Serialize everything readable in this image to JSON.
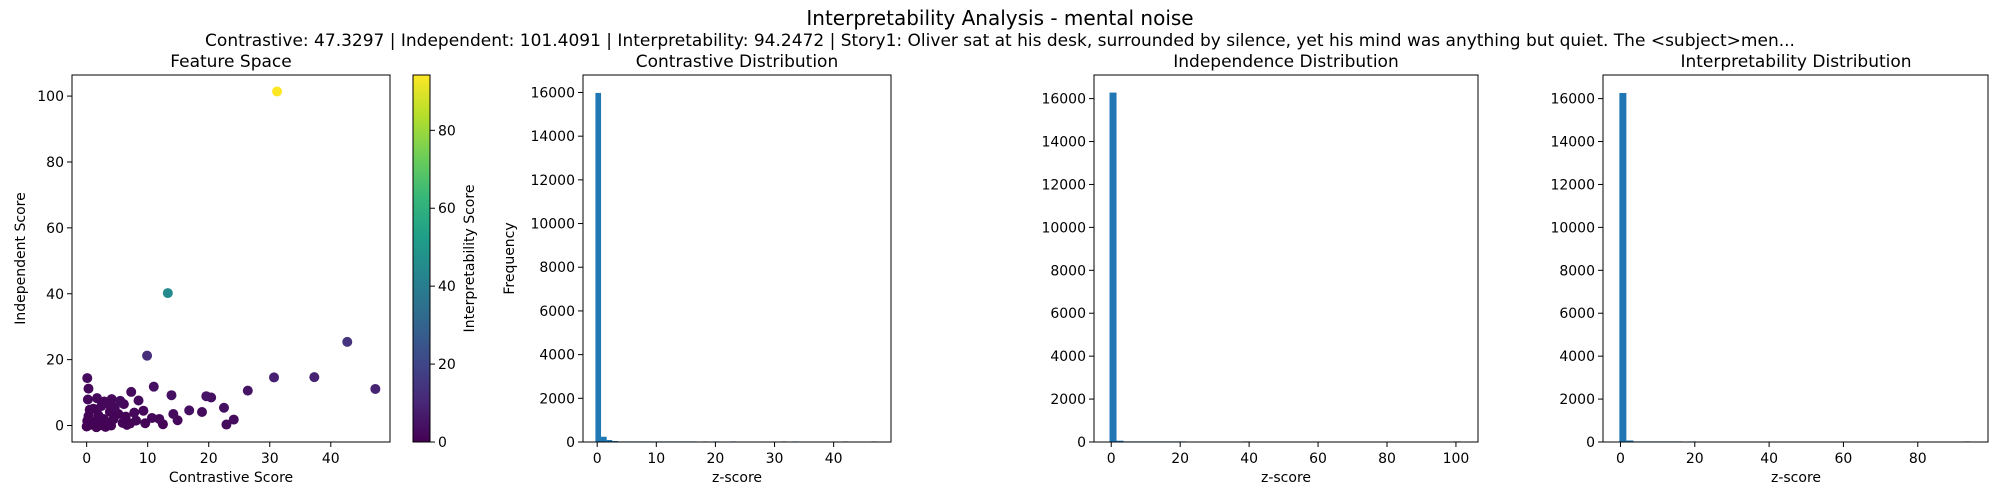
{
  "figure": {
    "title": "Interpretability Analysis - mental noise",
    "subtitle": "Contrastive: 47.3297 | Independent: 101.4091 | Interpretability: 94.2472 | Story1: Oliver sat at his desk, surrounded by silence, yet his mind was anything but quiet. The <subject>men..."
  },
  "colors": {
    "bar": "#1f77b4",
    "viridis": [
      "#440154",
      "#482878",
      "#3e4989",
      "#31688e",
      "#26828e",
      "#1f9e89",
      "#35b779",
      "#6ece58",
      "#b5de2b",
      "#fde725"
    ]
  },
  "chart_data": [
    {
      "type": "scatter",
      "title": "Feature Space",
      "xlabel": "Contrastive Score",
      "ylabel": "Independent Score",
      "xlim": [
        -2.4,
        49.7
      ],
      "ylim": [
        -5.0,
        106.4
      ],
      "xticks": [
        0,
        10,
        20,
        30,
        40
      ],
      "yticks": [
        0,
        20,
        40,
        60,
        80,
        100
      ],
      "colorbar": {
        "label": "Interpretability Score",
        "range": [
          0,
          94.2
        ],
        "ticks": [
          0,
          20,
          40,
          60,
          80
        ]
      },
      "points": [
        {
          "x": 31.2,
          "y": 101.4,
          "c": 94.2
        },
        {
          "x": 13.3,
          "y": 40.2,
          "c": 45
        },
        {
          "x": 42.7,
          "y": 25.4,
          "c": 14
        },
        {
          "x": 9.9,
          "y": 21.2,
          "c": 12
        },
        {
          "x": 37.3,
          "y": 14.7,
          "c": 9
        },
        {
          "x": 30.7,
          "y": 14.6,
          "c": 8
        },
        {
          "x": 47.3,
          "y": 11.1,
          "c": 9
        },
        {
          "x": 0.1,
          "y": 14.4,
          "c": 3
        },
        {
          "x": 11.0,
          "y": 11.8,
          "c": 4
        },
        {
          "x": 26.4,
          "y": 10.6,
          "c": 5
        },
        {
          "x": 0.3,
          "y": 11.2,
          "c": 2
        },
        {
          "x": 7.3,
          "y": 10.2,
          "c": 3
        },
        {
          "x": 13.9,
          "y": 9.2,
          "c": 4
        },
        {
          "x": 19.6,
          "y": 8.9,
          "c": 5
        },
        {
          "x": 20.4,
          "y": 8.5,
          "c": 4
        },
        {
          "x": 0.2,
          "y": 7.9,
          "c": 2
        },
        {
          "x": 1.7,
          "y": 8.3,
          "c": 2
        },
        {
          "x": 4.1,
          "y": 8.0,
          "c": 2
        },
        {
          "x": 5.5,
          "y": 7.5,
          "c": 3
        },
        {
          "x": 2.9,
          "y": 7.3,
          "c": 2
        },
        {
          "x": 8.5,
          "y": 7.6,
          "c": 3
        },
        {
          "x": 3.3,
          "y": 6.8,
          "c": 2
        },
        {
          "x": 6.1,
          "y": 6.5,
          "c": 2
        },
        {
          "x": 2.4,
          "y": 5.9,
          "c": 2
        },
        {
          "x": 4.6,
          "y": 5.4,
          "c": 2
        },
        {
          "x": 1.1,
          "y": 5.1,
          "c": 1
        },
        {
          "x": 0.5,
          "y": 4.8,
          "c": 1
        },
        {
          "x": 16.8,
          "y": 4.6,
          "c": 4
        },
        {
          "x": 18.9,
          "y": 4.1,
          "c": 3
        },
        {
          "x": 22.5,
          "y": 5.4,
          "c": 4
        },
        {
          "x": 3.8,
          "y": 4.2,
          "c": 1
        },
        {
          "x": 9.3,
          "y": 4.5,
          "c": 2
        },
        {
          "x": 7.8,
          "y": 3.9,
          "c": 2
        },
        {
          "x": 14.2,
          "y": 3.5,
          "c": 3
        },
        {
          "x": 5.2,
          "y": 3.5,
          "c": 1
        },
        {
          "x": 1.9,
          "y": 3.2,
          "c": 1
        },
        {
          "x": 0.3,
          "y": 2.9,
          "c": 1
        },
        {
          "x": 6.4,
          "y": 2.7,
          "c": 1
        },
        {
          "x": 10.7,
          "y": 2.3,
          "c": 2
        },
        {
          "x": 11.9,
          "y": 2.0,
          "c": 2
        },
        {
          "x": 14.9,
          "y": 1.6,
          "c": 2
        },
        {
          "x": 24.1,
          "y": 1.8,
          "c": 3
        },
        {
          "x": 2.8,
          "y": 2.0,
          "c": 1
        },
        {
          "x": 4.4,
          "y": 1.9,
          "c": 1
        },
        {
          "x": 8.1,
          "y": 1.5,
          "c": 1
        },
        {
          "x": 0.1,
          "y": 1.4,
          "c": 0.5
        },
        {
          "x": 1.3,
          "y": 1.1,
          "c": 0.5
        },
        {
          "x": 3.5,
          "y": 0.9,
          "c": 0.5
        },
        {
          "x": 5.9,
          "y": 0.8,
          "c": 0.5
        },
        {
          "x": 7.1,
          "y": 0.6,
          "c": 0.5
        },
        {
          "x": 9.6,
          "y": 0.7,
          "c": 1
        },
        {
          "x": 22.9,
          "y": 0.3,
          "c": 3
        },
        {
          "x": 0.6,
          "y": 0.2,
          "c": 0.3
        },
        {
          "x": 2.2,
          "y": 0.1,
          "c": 0.3
        },
        {
          "x": 4.0,
          "y": 0.0,
          "c": 0.3
        },
        {
          "x": 6.6,
          "y": 0.2,
          "c": 0.3
        },
        {
          "x": 12.5,
          "y": 0.4,
          "c": 1
        },
        {
          "x": 0.0,
          "y": -0.3,
          "c": 0.2
        },
        {
          "x": 1.6,
          "y": -0.5,
          "c": 0.2
        },
        {
          "x": 3.1,
          "y": -0.4,
          "c": 0.2
        }
      ]
    },
    {
      "type": "bar",
      "title": "Contrastive Distribution",
      "xlabel": "z-score",
      "ylabel": "Frequency",
      "xlim": [
        -2.4,
        49.7
      ],
      "ylim": [
        0,
        16800
      ],
      "xticks": [
        0,
        10,
        20,
        30,
        40
      ],
      "yticks": [
        0,
        2000,
        4000,
        6000,
        8000,
        10000,
        12000,
        14000,
        16000
      ],
      "bin_start": -0.3,
      "bin_width": 0.952,
      "values": [
        15980,
        240,
        90,
        45,
        25,
        15,
        10,
        6,
        4,
        3,
        2,
        2,
        1,
        1,
        1,
        1,
        1,
        1,
        0,
        1,
        0,
        1,
        0,
        0,
        1,
        0,
        0,
        0,
        0,
        0,
        0,
        0,
        0,
        1,
        0,
        1,
        0,
        0,
        0,
        0,
        0,
        0,
        0,
        0,
        1,
        0,
        0,
        0,
        0,
        1
      ]
    },
    {
      "type": "bar",
      "title": "Independence Distribution",
      "xlabel": "z-score",
      "ylabel": "",
      "xlim": [
        -5.0,
        106.4
      ],
      "ylim": [
        0,
        17100
      ],
      "xticks": [
        0,
        20,
        40,
        60,
        80,
        100
      ],
      "yticks": [
        0,
        2000,
        4000,
        6000,
        8000,
        10000,
        12000,
        14000,
        16000
      ],
      "bin_start": -0.5,
      "bin_width": 2.038,
      "values": [
        16280,
        60,
        15,
        6,
        3,
        2,
        1,
        1,
        1,
        1,
        1,
        0,
        0,
        0,
        0,
        0,
        0,
        0,
        0,
        1,
        0,
        0,
        0,
        0,
        0,
        0,
        0,
        0,
        0,
        0,
        0,
        0,
        0,
        0,
        0,
        0,
        0,
        0,
        0,
        0,
        0,
        0,
        0,
        0,
        0,
        0,
        0,
        0,
        0,
        1
      ]
    },
    {
      "type": "bar",
      "title": "Interpretability Distribution",
      "xlabel": "z-score",
      "ylabel": "",
      "xlim": [
        -4.7,
        98.9
      ],
      "ylim": [
        0,
        17100
      ],
      "xticks": [
        0,
        20,
        40,
        60,
        80
      ],
      "yticks": [
        0,
        2000,
        4000,
        6000,
        8000,
        10000,
        12000,
        14000,
        16000
      ],
      "bin_start": -0.3,
      "bin_width": 1.891,
      "values": [
        16260,
        70,
        20,
        8,
        4,
        2,
        1,
        1,
        1,
        0,
        1,
        0,
        0,
        0,
        0,
        0,
        0,
        0,
        0,
        0,
        0,
        0,
        0,
        0,
        0,
        0,
        0,
        0,
        0,
        0,
        0,
        0,
        0,
        0,
        0,
        0,
        0,
        0,
        0,
        0,
        0,
        0,
        0,
        0,
        0,
        0,
        0,
        0,
        0,
        1
      ]
    }
  ]
}
